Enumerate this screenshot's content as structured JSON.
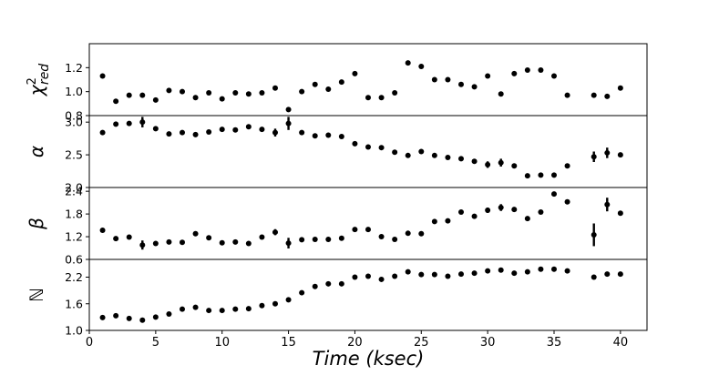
{
  "chart_data": {
    "type": "scatter",
    "xlabel": "Time (ksec)",
    "xlim": [
      0,
      42
    ],
    "xticks": [
      0,
      5,
      10,
      15,
      20,
      25,
      30,
      35,
      40
    ],
    "xtick_labels": [
      "0",
      "5",
      "10",
      "15",
      "20",
      "25",
      "30",
      "35",
      "40"
    ],
    "panels": [
      {
        "ylabel": "χ²red",
        "ylabel_base": "χ",
        "ylabel_sup": "2",
        "ylabel_sub": "red",
        "ylim": [
          0.8,
          1.4
        ],
        "yticks": [
          0.8,
          1.0,
          1.2
        ],
        "ytick_labels": [
          "0.8",
          "1.0",
          "1.2"
        ],
        "points": [
          {
            "x": 1,
            "y": 1.13,
            "err": 0
          },
          {
            "x": 2,
            "y": 0.92,
            "err": 0
          },
          {
            "x": 3,
            "y": 0.97,
            "err": 0
          },
          {
            "x": 4,
            "y": 0.97,
            "err": 0
          },
          {
            "x": 5,
            "y": 0.93,
            "err": 0
          },
          {
            "x": 6,
            "y": 1.01,
            "err": 0
          },
          {
            "x": 7,
            "y": 1.0,
            "err": 0
          },
          {
            "x": 8,
            "y": 0.95,
            "err": 0
          },
          {
            "x": 9,
            "y": 0.99,
            "err": 0
          },
          {
            "x": 10,
            "y": 0.94,
            "err": 0
          },
          {
            "x": 11,
            "y": 0.99,
            "err": 0
          },
          {
            "x": 12,
            "y": 0.98,
            "err": 0
          },
          {
            "x": 13,
            "y": 0.99,
            "err": 0
          },
          {
            "x": 14,
            "y": 1.03,
            "err": 0
          },
          {
            "x": 15,
            "y": 0.85,
            "err": 0
          },
          {
            "x": 16,
            "y": 1.0,
            "err": 0
          },
          {
            "x": 17,
            "y": 1.06,
            "err": 0
          },
          {
            "x": 18,
            "y": 1.02,
            "err": 0
          },
          {
            "x": 19,
            "y": 1.08,
            "err": 0
          },
          {
            "x": 20,
            "y": 1.15,
            "err": 0
          },
          {
            "x": 21,
            "y": 0.95,
            "err": 0
          },
          {
            "x": 22,
            "y": 0.95,
            "err": 0
          },
          {
            "x": 23,
            "y": 0.99,
            "err": 0
          },
          {
            "x": 24,
            "y": 1.24,
            "err": 0
          },
          {
            "x": 25,
            "y": 1.21,
            "err": 0
          },
          {
            "x": 26,
            "y": 1.1,
            "err": 0
          },
          {
            "x": 27,
            "y": 1.1,
            "err": 0
          },
          {
            "x": 28,
            "y": 1.06,
            "err": 0
          },
          {
            "x": 29,
            "y": 1.04,
            "err": 0
          },
          {
            "x": 30,
            "y": 1.13,
            "err": 0
          },
          {
            "x": 31,
            "y": 0.98,
            "err": 0
          },
          {
            "x": 32,
            "y": 1.15,
            "err": 0
          },
          {
            "x": 33,
            "y": 1.18,
            "err": 0
          },
          {
            "x": 34,
            "y": 1.18,
            "err": 0
          },
          {
            "x": 35,
            "y": 1.13,
            "err": 0
          },
          {
            "x": 36,
            "y": 0.97,
            "err": 0
          },
          {
            "x": 38,
            "y": 0.97,
            "err": 0
          },
          {
            "x": 39,
            "y": 0.96,
            "err": 0
          },
          {
            "x": 40,
            "y": 1.03,
            "err": 0
          }
        ]
      },
      {
        "ylabel": "α",
        "ylim": [
          2.0,
          3.1
        ],
        "yticks": [
          2.0,
          2.5,
          3.0
        ],
        "ytick_labels": [
          "2.0",
          "2.5",
          "3.0"
        ],
        "points": [
          {
            "x": 1,
            "y": 2.84,
            "err": 0.03
          },
          {
            "x": 2,
            "y": 2.97,
            "err": 0.03
          },
          {
            "x": 3,
            "y": 2.98,
            "err": 0.03
          },
          {
            "x": 4,
            "y": 3.0,
            "err": 0.08
          },
          {
            "x": 5,
            "y": 2.9,
            "err": 0.03
          },
          {
            "x": 6,
            "y": 2.82,
            "err": 0.03
          },
          {
            "x": 7,
            "y": 2.84,
            "err": 0.03
          },
          {
            "x": 8,
            "y": 2.81,
            "err": 0.03
          },
          {
            "x": 9,
            "y": 2.85,
            "err": 0.03
          },
          {
            "x": 10,
            "y": 2.89,
            "err": 0.03
          },
          {
            "x": 11,
            "y": 2.88,
            "err": 0.03
          },
          {
            "x": 12,
            "y": 2.93,
            "err": 0.03
          },
          {
            "x": 13,
            "y": 2.89,
            "err": 0.03
          },
          {
            "x": 14,
            "y": 2.84,
            "err": 0.06
          },
          {
            "x": 15,
            "y": 2.98,
            "err": 0.1
          },
          {
            "x": 16,
            "y": 2.84,
            "err": 0.03
          },
          {
            "x": 17,
            "y": 2.79,
            "err": 0.03
          },
          {
            "x": 18,
            "y": 2.8,
            "err": 0.03
          },
          {
            "x": 19,
            "y": 2.78,
            "err": 0.03
          },
          {
            "x": 20,
            "y": 2.67,
            "err": 0.03
          },
          {
            "x": 21,
            "y": 2.62,
            "err": 0.03
          },
          {
            "x": 22,
            "y": 2.61,
            "err": 0.03
          },
          {
            "x": 23,
            "y": 2.54,
            "err": 0.03
          },
          {
            "x": 24,
            "y": 2.49,
            "err": 0.03
          },
          {
            "x": 25,
            "y": 2.55,
            "err": 0.03
          },
          {
            "x": 26,
            "y": 2.49,
            "err": 0.03
          },
          {
            "x": 27,
            "y": 2.46,
            "err": 0.03
          },
          {
            "x": 28,
            "y": 2.44,
            "err": 0.03
          },
          {
            "x": 29,
            "y": 2.4,
            "err": 0.03
          },
          {
            "x": 30,
            "y": 2.35,
            "err": 0.05
          },
          {
            "x": 31,
            "y": 2.38,
            "err": 0.06
          },
          {
            "x": 32,
            "y": 2.33,
            "err": 0.03
          },
          {
            "x": 33,
            "y": 2.18,
            "err": 0.03
          },
          {
            "x": 34,
            "y": 2.19,
            "err": 0.03
          },
          {
            "x": 35,
            "y": 2.19,
            "err": 0.03
          },
          {
            "x": 36,
            "y": 2.33,
            "err": 0.03
          },
          {
            "x": 38,
            "y": 2.47,
            "err": 0.08
          },
          {
            "x": 39,
            "y": 2.53,
            "err": 0.08
          },
          {
            "x": 40,
            "y": 2.5,
            "err": 0.03
          }
        ]
      },
      {
        "ylabel": "β",
        "ylim": [
          0.6,
          2.5
        ],
        "yticks": [
          0.6,
          1.2,
          1.8,
          2.4
        ],
        "ytick_labels": [
          "0.6",
          "1.2",
          "1.8",
          "2.4"
        ],
        "points": [
          {
            "x": 1,
            "y": 1.37,
            "err": 0.05
          },
          {
            "x": 2,
            "y": 1.15,
            "err": 0.05
          },
          {
            "x": 3,
            "y": 1.19,
            "err": 0.05
          },
          {
            "x": 4,
            "y": 0.98,
            "err": 0.12
          },
          {
            "x": 5,
            "y": 1.02,
            "err": 0.05
          },
          {
            "x": 6,
            "y": 1.06,
            "err": 0.05
          },
          {
            "x": 7,
            "y": 1.05,
            "err": 0.05
          },
          {
            "x": 8,
            "y": 1.28,
            "err": 0.05
          },
          {
            "x": 9,
            "y": 1.17,
            "err": 0.05
          },
          {
            "x": 10,
            "y": 1.04,
            "err": 0.05
          },
          {
            "x": 11,
            "y": 1.06,
            "err": 0.05
          },
          {
            "x": 12,
            "y": 1.02,
            "err": 0.05
          },
          {
            "x": 13,
            "y": 1.19,
            "err": 0.05
          },
          {
            "x": 14,
            "y": 1.32,
            "err": 0.08
          },
          {
            "x": 15,
            "y": 1.03,
            "err": 0.14
          },
          {
            "x": 16,
            "y": 1.12,
            "err": 0.05
          },
          {
            "x": 17,
            "y": 1.13,
            "err": 0.05
          },
          {
            "x": 18,
            "y": 1.13,
            "err": 0.05
          },
          {
            "x": 19,
            "y": 1.16,
            "err": 0.05
          },
          {
            "x": 20,
            "y": 1.39,
            "err": 0.05
          },
          {
            "x": 21,
            "y": 1.39,
            "err": 0.05
          },
          {
            "x": 22,
            "y": 1.2,
            "err": 0.05
          },
          {
            "x": 23,
            "y": 1.13,
            "err": 0.05
          },
          {
            "x": 24,
            "y": 1.29,
            "err": 0.05
          },
          {
            "x": 25,
            "y": 1.28,
            "err": 0.05
          },
          {
            "x": 26,
            "y": 1.6,
            "err": 0.05
          },
          {
            "x": 27,
            "y": 1.62,
            "err": 0.05
          },
          {
            "x": 28,
            "y": 1.85,
            "err": 0.05
          },
          {
            "x": 29,
            "y": 1.74,
            "err": 0.05
          },
          {
            "x": 30,
            "y": 1.9,
            "err": 0.07
          },
          {
            "x": 31,
            "y": 1.97,
            "err": 0.09
          },
          {
            "x": 32,
            "y": 1.92,
            "err": 0.05
          },
          {
            "x": 33,
            "y": 1.68,
            "err": 0.05
          },
          {
            "x": 34,
            "y": 1.85,
            "err": 0.05
          },
          {
            "x": 35,
            "y": 2.33,
            "err": 0.05
          },
          {
            "x": 36,
            "y": 2.12,
            "err": 0.05
          },
          {
            "x": 38,
            "y": 1.25,
            "err": 0.3
          },
          {
            "x": 39,
            "y": 2.05,
            "err": 0.18
          },
          {
            "x": 40,
            "y": 1.82,
            "err": 0.05
          }
        ]
      },
      {
        "ylabel": "ℕ",
        "ylim": [
          1.0,
          2.6
        ],
        "yticks": [
          1.0,
          1.6,
          2.2
        ],
        "ytick_labels": [
          "1.0",
          "1.6",
          "2.2"
        ],
        "points": [
          {
            "x": 1,
            "y": 1.29,
            "err": 0
          },
          {
            "x": 2,
            "y": 1.33,
            "err": 0
          },
          {
            "x": 3,
            "y": 1.27,
            "err": 0
          },
          {
            "x": 4,
            "y": 1.23,
            "err": 0
          },
          {
            "x": 5,
            "y": 1.3,
            "err": 0
          },
          {
            "x": 6,
            "y": 1.37,
            "err": 0
          },
          {
            "x": 7,
            "y": 1.48,
            "err": 0
          },
          {
            "x": 8,
            "y": 1.52,
            "err": 0
          },
          {
            "x": 9,
            "y": 1.45,
            "err": 0
          },
          {
            "x": 10,
            "y": 1.45,
            "err": 0
          },
          {
            "x": 11,
            "y": 1.48,
            "err": 0
          },
          {
            "x": 12,
            "y": 1.49,
            "err": 0
          },
          {
            "x": 13,
            "y": 1.56,
            "err": 0
          },
          {
            "x": 14,
            "y": 1.6,
            "err": 0
          },
          {
            "x": 15,
            "y": 1.69,
            "err": 0
          },
          {
            "x": 16,
            "y": 1.85,
            "err": 0
          },
          {
            "x": 17,
            "y": 1.99,
            "err": 0
          },
          {
            "x": 18,
            "y": 2.05,
            "err": 0
          },
          {
            "x": 19,
            "y": 2.05,
            "err": 0
          },
          {
            "x": 20,
            "y": 2.2,
            "err": 0
          },
          {
            "x": 21,
            "y": 2.22,
            "err": 0
          },
          {
            "x": 22,
            "y": 2.15,
            "err": 0
          },
          {
            "x": 23,
            "y": 2.22,
            "err": 0
          },
          {
            "x": 24,
            "y": 2.32,
            "err": 0
          },
          {
            "x": 25,
            "y": 2.26,
            "err": 0
          },
          {
            "x": 26,
            "y": 2.26,
            "err": 0
          },
          {
            "x": 27,
            "y": 2.22,
            "err": 0
          },
          {
            "x": 28,
            "y": 2.27,
            "err": 0
          },
          {
            "x": 29,
            "y": 2.29,
            "err": 0
          },
          {
            "x": 30,
            "y": 2.34,
            "err": 0
          },
          {
            "x": 31,
            "y": 2.36,
            "err": 0
          },
          {
            "x": 32,
            "y": 2.29,
            "err": 0
          },
          {
            "x": 33,
            "y": 2.32,
            "err": 0
          },
          {
            "x": 34,
            "y": 2.38,
            "err": 0
          },
          {
            "x": 35,
            "y": 2.38,
            "err": 0
          },
          {
            "x": 36,
            "y": 2.34,
            "err": 0
          },
          {
            "x": 38,
            "y": 2.2,
            "err": 0
          },
          {
            "x": 39,
            "y": 2.27,
            "err": 0
          },
          {
            "x": 40,
            "y": 2.27,
            "err": 0
          }
        ]
      }
    ],
    "grid": false,
    "legend": "none"
  }
}
